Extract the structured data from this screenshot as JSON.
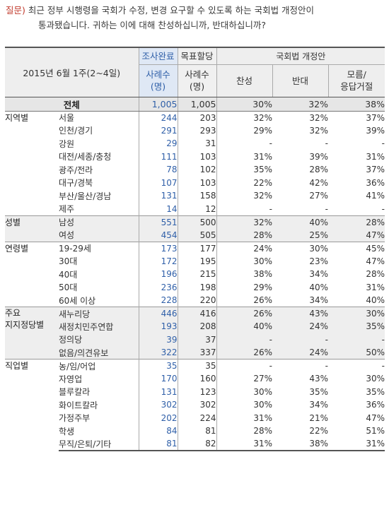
{
  "question": {
    "label": "질문)",
    "line1": "최근 정부 시행령을 국회가 수정, 변경 요구할 수 있도록 하는 국회법 개정안이",
    "line2": "통과됐습니다. 귀하는 이에 대해 찬성하십니까, 반대하십니까?"
  },
  "header": {
    "period": "2015년 6월 1주(2~4일)",
    "count_top": "조사완료",
    "count_bottom_l1": "사례수",
    "count_bottom_l2": "(명)",
    "target_top": "목표할당",
    "target_bottom_l1": "사례수",
    "target_bottom_l2": "(명)",
    "group": "국회법 개정안",
    "opt_agree": "찬성",
    "opt_oppose": "반대",
    "opt_dk_l1": "모름/",
    "opt_dk_l2": "응답거절"
  },
  "total": {
    "label": "전체",
    "n": "1,005",
    "target": "1,005",
    "agree": "30%",
    "oppose": "32%",
    "dk": "38%"
  },
  "groups": [
    {
      "name": "지역별",
      "rows": [
        {
          "sub": "서울",
          "n": "244",
          "target": "203",
          "agree": "32%",
          "oppose": "32%",
          "dk": "37%"
        },
        {
          "sub": "인천/경기",
          "n": "291",
          "target": "293",
          "agree": "29%",
          "oppose": "32%",
          "dk": "39%"
        },
        {
          "sub": "강원",
          "n": "29",
          "target": "31",
          "agree": "-",
          "oppose": "-",
          "dk": "-"
        },
        {
          "sub": "대전/세종/충청",
          "n": "111",
          "target": "103",
          "agree": "31%",
          "oppose": "39%",
          "dk": "31%"
        },
        {
          "sub": "광주/전라",
          "n": "78",
          "target": "102",
          "agree": "35%",
          "oppose": "28%",
          "dk": "37%"
        },
        {
          "sub": "대구/경북",
          "n": "107",
          "target": "103",
          "agree": "22%",
          "oppose": "42%",
          "dk": "36%"
        },
        {
          "sub": "부산/울산/경남",
          "n": "131",
          "target": "158",
          "agree": "32%",
          "oppose": "27%",
          "dk": "41%"
        },
        {
          "sub": "제주",
          "n": "14",
          "target": "12",
          "agree": "-",
          "oppose": "-",
          "dk": "-"
        }
      ]
    },
    {
      "name": "성별",
      "rows": [
        {
          "sub": "남성",
          "n": "551",
          "target": "500",
          "agree": "32%",
          "oppose": "40%",
          "dk": "28%"
        },
        {
          "sub": "여성",
          "n": "454",
          "target": "505",
          "agree": "28%",
          "oppose": "25%",
          "dk": "47%"
        }
      ]
    },
    {
      "name": "연령별",
      "rows": [
        {
          "sub": "19-29세",
          "n": "173",
          "target": "177",
          "agree": "24%",
          "oppose": "30%",
          "dk": "45%"
        },
        {
          "sub": "30대",
          "n": "172",
          "target": "195",
          "agree": "30%",
          "oppose": "23%",
          "dk": "47%"
        },
        {
          "sub": "40대",
          "n": "196",
          "target": "215",
          "agree": "38%",
          "oppose": "34%",
          "dk": "28%"
        },
        {
          "sub": "50대",
          "n": "236",
          "target": "198",
          "agree": "29%",
          "oppose": "40%",
          "dk": "31%"
        },
        {
          "sub": "60세 이상",
          "n": "228",
          "target": "220",
          "agree": "26%",
          "oppose": "34%",
          "dk": "40%"
        }
      ]
    },
    {
      "name_l1": "주요",
      "name_l2": "지지정당별",
      "rows": [
        {
          "sub": "새누리당",
          "n": "446",
          "target": "416",
          "agree": "26%",
          "oppose": "43%",
          "dk": "30%"
        },
        {
          "sub": "새정치민주연합",
          "n": "193",
          "target": "208",
          "agree": "40%",
          "oppose": "24%",
          "dk": "35%"
        },
        {
          "sub": "정의당",
          "n": "39",
          "target": "37",
          "agree": "-",
          "oppose": "-",
          "dk": "-"
        },
        {
          "sub": "없음/의견유보",
          "n": "322",
          "target": "337",
          "agree": "26%",
          "oppose": "24%",
          "dk": "50%"
        }
      ]
    },
    {
      "name": "직업별",
      "rows": [
        {
          "sub": "농/임/어업",
          "n": "35",
          "target": "35",
          "agree": "-",
          "oppose": "-",
          "dk": "-"
        },
        {
          "sub": "자영업",
          "n": "170",
          "target": "160",
          "agree": "27%",
          "oppose": "43%",
          "dk": "30%"
        },
        {
          "sub": "블루칼라",
          "n": "131",
          "target": "123",
          "agree": "30%",
          "oppose": "35%",
          "dk": "35%"
        },
        {
          "sub": "화이트칼라",
          "n": "302",
          "target": "302",
          "agree": "30%",
          "oppose": "34%",
          "dk": "36%"
        },
        {
          "sub": "가정주부",
          "n": "202",
          "target": "224",
          "agree": "31%",
          "oppose": "21%",
          "dk": "47%"
        },
        {
          "sub": "학생",
          "n": "84",
          "target": "81",
          "agree": "28%",
          "oppose": "22%",
          "dk": "51%"
        },
        {
          "sub": "무직/은퇴/기타",
          "n": "81",
          "target": "82",
          "agree": "31%",
          "oppose": "38%",
          "dk": "31%"
        }
      ]
    }
  ]
}
